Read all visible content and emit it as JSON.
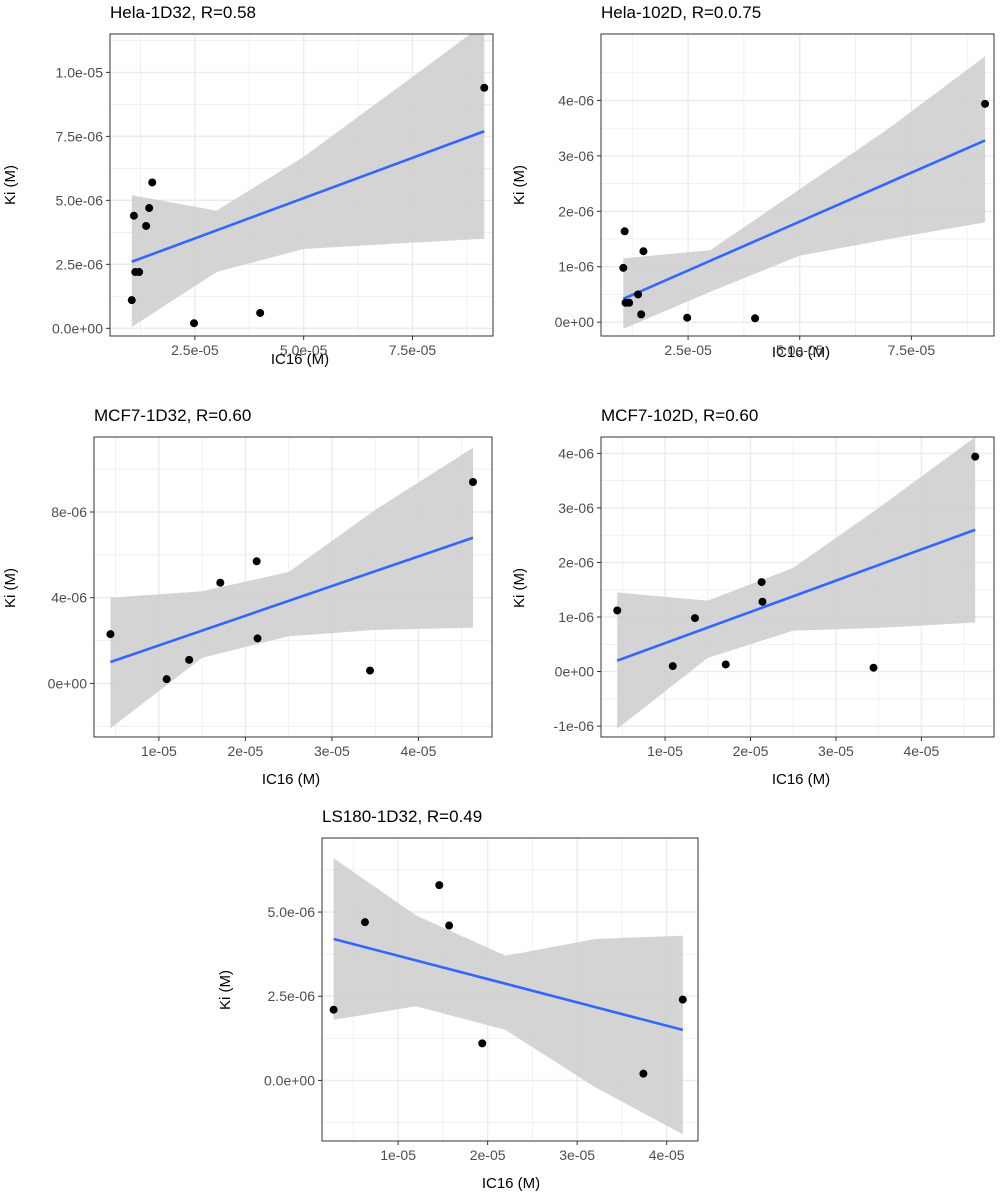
{
  "colors": {
    "point": "#000000",
    "fit_line": "#3366ff",
    "ribbon": "#cccccc",
    "grid": "#ebebeb",
    "panel_border": "#333333",
    "background": "#ffffff"
  },
  "chart_data": [
    {
      "type": "scatter",
      "title": "Hela-1D32, R=0.58",
      "xlabel": "IC16 (M)",
      "ylabel": "Ki (M)",
      "xlim": [
        5.5e-06,
        9.35e-05
      ],
      "ylim": [
        -3e-07,
        1.15e-05
      ],
      "x_ticks": [
        2.5e-05,
        5e-05,
        7.5e-05
      ],
      "x_tick_labels": [
        "2.5e-05",
        "5.0e-05",
        "7.5e-05"
      ],
      "y_ticks": [
        0,
        2.5e-06,
        5e-06,
        7.5e-06,
        1e-05
      ],
      "y_tick_labels": [
        "0.0e+00",
        "2.5e-06",
        "5.0e-06",
        "7.5e-06",
        "1.0e-05"
      ],
      "grid": true,
      "points": [
        {
          "x": 1.05e-05,
          "y": 1.1e-06
        },
        {
          "x": 1.1e-05,
          "y": 4.4e-06
        },
        {
          "x": 1.13e-05,
          "y": 2.2e-06
        },
        {
          "x": 1.22e-05,
          "y": 2.2e-06
        },
        {
          "x": 1.38e-05,
          "y": 4e-06
        },
        {
          "x": 1.45e-05,
          "y": 4.7e-06
        },
        {
          "x": 1.52e-05,
          "y": 5.7e-06
        },
        {
          "x": 2.48e-05,
          "y": 2e-07
        },
        {
          "x": 4e-05,
          "y": 6e-07
        },
        {
          "x": 9.15e-05,
          "y": 9.4e-06
        }
      ],
      "fit": {
        "x": [
          1.05e-05,
          9.15e-05
        ],
        "y": [
          2.6e-06,
          7.7e-06
        ]
      },
      "band": {
        "x": [
          1.05e-05,
          3e-05,
          5e-05,
          7e-05,
          9.15e-05
        ],
        "lower": [
          5e-08,
          2.2e-06,
          3.1e-06,
          3.3e-06,
          3.5e-06
        ],
        "upper": [
          5.2e-06,
          4.6e-06,
          6.7e-06,
          9.2e-06,
          1.19e-05
        ]
      }
    },
    {
      "type": "scatter",
      "title": "Hela-102D, R=0.0.75",
      "xlabel": "IC16 (M)",
      "ylabel": "Ki (M)",
      "xlim": [
        5.5e-06,
        9.35e-05
      ],
      "ylim": [
        -2.5e-07,
        5.2e-06
      ],
      "x_ticks": [
        2.5e-05,
        5e-05,
        7.5e-05
      ],
      "x_tick_labels": [
        "2.5e-05",
        "5.0e-05",
        "7.5e-05"
      ],
      "y_ticks": [
        0,
        1e-06,
        2e-06,
        3e-06,
        4e-06
      ],
      "y_tick_labels": [
        "0e+00",
        "1e-06",
        "2e-06",
        "3e-06",
        "4e-06"
      ],
      "grid": true,
      "points": [
        {
          "x": 1.05e-05,
          "y": 9.8e-07
        },
        {
          "x": 1.08e-05,
          "y": 1.64e-06
        },
        {
          "x": 1.1e-05,
          "y": 3.5e-07
        },
        {
          "x": 1.18e-05,
          "y": 3.5e-07
        },
        {
          "x": 1.38e-05,
          "y": 5e-07
        },
        {
          "x": 1.45e-05,
          "y": 1.4e-07
        },
        {
          "x": 1.5e-05,
          "y": 1.28e-06
        },
        {
          "x": 2.48e-05,
          "y": 8e-08
        },
        {
          "x": 4e-05,
          "y": 7e-08
        },
        {
          "x": 9.15e-05,
          "y": 3.94e-06
        }
      ],
      "fit": {
        "x": [
          1.05e-05,
          9.15e-05
        ],
        "y": [
          4.2e-07,
          3.28e-06
        ]
      },
      "band": {
        "x": [
          1.05e-05,
          3e-05,
          5e-05,
          7e-05,
          9.15e-05
        ],
        "lower": [
          -1.2e-07,
          5.5e-07,
          1.2e-06,
          1.5e-06,
          1.8e-06
        ],
        "upper": [
          1.15e-06,
          1.3e-06,
          2.4e-06,
          3.5e-06,
          4.8e-06
        ]
      }
    },
    {
      "type": "scatter",
      "title": "MCF7-1D32, R=0.60",
      "xlabel": "IC16 (M)",
      "ylabel": "Ki (M)",
      "xlim": [
        2.5e-06,
        4.85e-05
      ],
      "ylim": [
        -2.5e-06,
        1.15e-05
      ],
      "x_ticks": [
        1e-05,
        2e-05,
        3e-05,
        4e-05
      ],
      "x_tick_labels": [
        "1e-05",
        "2e-05",
        "3e-05",
        "4e-05"
      ],
      "y_ticks": [
        0,
        4e-06,
        8e-06
      ],
      "y_tick_labels": [
        "0e+00",
        "4e-06",
        "8e-06"
      ],
      "grid": true,
      "points": [
        {
          "x": 4.4e-06,
          "y": 2.3e-06
        },
        {
          "x": 1.09e-05,
          "y": 2e-07
        },
        {
          "x": 1.35e-05,
          "y": 1.1e-06
        },
        {
          "x": 1.71e-05,
          "y": 4.7e-06
        },
        {
          "x": 2.13e-05,
          "y": 5.7e-06
        },
        {
          "x": 2.14e-05,
          "y": 2.1e-06
        },
        {
          "x": 3.44e-05,
          "y": 6e-07
        },
        {
          "x": 4.63e-05,
          "y": 9.4e-06
        }
      ],
      "fit": {
        "x": [
          4.4e-06,
          4.63e-05
        ],
        "y": [
          1e-06,
          6.8e-06
        ]
      },
      "band": {
        "x": [
          4.4e-06,
          1.5e-05,
          2.5e-05,
          3.5e-05,
          4.63e-05
        ],
        "lower": [
          -2.1e-06,
          1.2e-06,
          2.2e-06,
          2.5e-06,
          2.6e-06
        ],
        "upper": [
          4e-06,
          4.3e-06,
          5.2e-06,
          8.1e-06,
          1.1e-05
        ]
      }
    },
    {
      "type": "scatter",
      "title": "MCF7-102D, R=0.60",
      "xlabel": "IC16 (M)",
      "ylabel": "Ki (M)",
      "xlim": [
        2.5e-06,
        4.85e-05
      ],
      "ylim": [
        -1.2e-06,
        4.3e-06
      ],
      "x_ticks": [
        1e-05,
        2e-05,
        3e-05,
        4e-05
      ],
      "x_tick_labels": [
        "1e-05",
        "2e-05",
        "3e-05",
        "4e-05"
      ],
      "y_ticks": [
        -1e-06,
        0,
        1e-06,
        2e-06,
        3e-06,
        4e-06
      ],
      "y_tick_labels": [
        "-1e-06",
        "0e+00",
        "1e-06",
        "2e-06",
        "3e-06",
        "4e-06"
      ],
      "grid": true,
      "points": [
        {
          "x": 4.4e-06,
          "y": 1.12e-06
        },
        {
          "x": 1.09e-05,
          "y": 1e-07
        },
        {
          "x": 1.35e-05,
          "y": 9.8e-07
        },
        {
          "x": 1.71e-05,
          "y": 1.3e-07
        },
        {
          "x": 2.13e-05,
          "y": 1.64e-06
        },
        {
          "x": 2.14e-05,
          "y": 1.28e-06
        },
        {
          "x": 3.44e-05,
          "y": 7e-08
        },
        {
          "x": 4.63e-05,
          "y": 3.94e-06
        }
      ],
      "fit": {
        "x": [
          4.4e-06,
          4.63e-05
        ],
        "y": [
          2e-07,
          2.6e-06
        ]
      },
      "band": {
        "x": [
          4.4e-06,
          1.5e-05,
          2.5e-05,
          3.5e-05,
          4.63e-05
        ],
        "lower": [
          -1.05e-06,
          2.5e-07,
          7.5e-07,
          8e-07,
          9e-07
        ],
        "upper": [
          1.45e-06,
          1.3e-06,
          1.9e-06,
          3e-06,
          4.3e-06
        ]
      }
    },
    {
      "type": "scatter",
      "title": "LS180-1D32, R=0.49",
      "xlabel": "IC16 (M)",
      "ylabel": "Ki (M)",
      "xlim": [
        1.5e-06,
        4.35e-05
      ],
      "ylim": [
        -1.8e-06,
        7.2e-06
      ],
      "x_ticks": [
        1e-05,
        2e-05,
        3e-05,
        4e-05
      ],
      "x_tick_labels": [
        "1e-05",
        "2e-05",
        "3e-05",
        "4e-05"
      ],
      "y_ticks": [
        0,
        2.5e-06,
        5e-06
      ],
      "y_tick_labels": [
        "0.0e+00",
        "2.5e-06",
        "5.0e-06"
      ],
      "grid": true,
      "points": [
        {
          "x": 2.8e-06,
          "y": 2.1e-06
        },
        {
          "x": 6.3e-06,
          "y": 4.7e-06
        },
        {
          "x": 1.46e-05,
          "y": 5.8e-06
        },
        {
          "x": 1.57e-05,
          "y": 4.6e-06
        },
        {
          "x": 1.94e-05,
          "y": 1.1e-06
        },
        {
          "x": 3.74e-05,
          "y": 2e-07
        },
        {
          "x": 4.18e-05,
          "y": 2.4e-06
        }
      ],
      "fit": {
        "x": [
          2.8e-06,
          4.18e-05
        ],
        "y": [
          4.2e-06,
          1.5e-06
        ]
      },
      "band": {
        "x": [
          2.8e-06,
          1.2e-05,
          2.2e-05,
          3.2e-05,
          4.18e-05
        ],
        "lower": [
          1.8e-06,
          2.2e-06,
          1.5e-06,
          -2e-07,
          -1.6e-06
        ],
        "upper": [
          6.6e-06,
          4.9e-06,
          3.7e-06,
          4.2e-06,
          4.3e-06
        ]
      }
    }
  ]
}
